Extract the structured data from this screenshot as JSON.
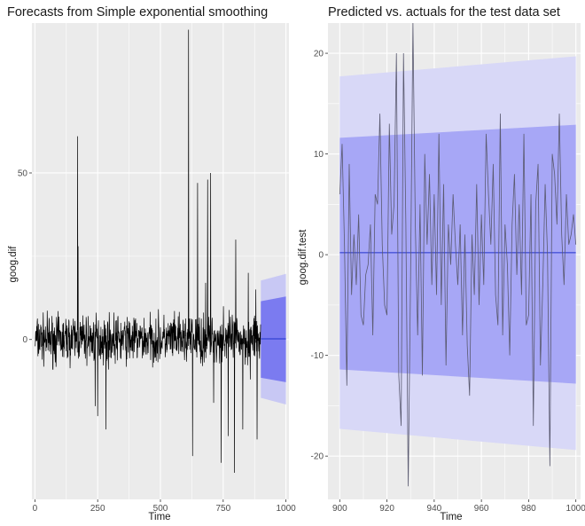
{
  "chart_data": [
    {
      "type": "line",
      "title": "Forecasts from Simple exponential smoothing",
      "xlabel": "Time",
      "ylabel": "goog.dif",
      "xlim": [
        -12,
        1012
      ],
      "ylim": [
        -48,
        95
      ],
      "xticks": [
        0,
        250,
        500,
        750,
        1000
      ],
      "yticks": [
        0,
        50
      ],
      "xtick_labels": [
        "0",
        "250",
        "500",
        "750",
        "1000"
      ],
      "ytick_labels": [
        "0",
        "50"
      ],
      "series": [
        {
          "x_start": 1,
          "x_end": 899,
          "seed": 7,
          "spikes": [
            [
              170,
              61
            ],
            [
              172,
              28
            ],
            [
              240,
              -20
            ],
            [
              250,
              -23
            ],
            [
              283,
              -27
            ],
            [
              612,
              93
            ],
            [
              628,
              -35
            ],
            [
              648,
              47
            ],
            [
              668,
              -8
            ],
            [
              680,
              17
            ],
            [
              688,
              48
            ],
            [
              700,
              50
            ],
            [
              712,
              -19
            ],
            [
              742,
              -37
            ],
            [
              751,
              10
            ],
            [
              770,
              -29
            ],
            [
              795,
              -40
            ],
            [
              800,
              30
            ],
            [
              828,
              -27
            ],
            [
              850,
              20
            ],
            [
              858,
              -12
            ],
            [
              880,
              15
            ],
            [
              885,
              -30
            ]
          ]
        }
      ],
      "forecast": {
        "x_start": 900,
        "x_end": 1000,
        "mean": 0.2,
        "pi80": [
          [
            900,
            -11.5,
            11.5
          ],
          [
            1000,
            -12.8,
            12.9
          ]
        ],
        "pi95": [
          [
            900,
            -17.5,
            17.7
          ],
          [
            1000,
            -19.5,
            19.7
          ]
        ]
      },
      "colors": {
        "panel": "#ebebeb",
        "grid": "#ffffff",
        "line": "#000000",
        "pi80": "#7b7bf0",
        "pi95": "#c8c8f4",
        "mean": "#2233cc"
      }
    },
    {
      "type": "line",
      "title": "Predicted vs. actuals for the test data set",
      "xlabel": "Time",
      "ylabel": "goog.dif.test",
      "xlim": [
        895,
        1002
      ],
      "ylim": [
        -24.3,
        23
      ],
      "xticks": [
        900,
        920,
        940,
        960,
        980,
        1000
      ],
      "yticks": [
        -20,
        -10,
        0,
        10,
        20
      ],
      "xtick_labels": [
        "900",
        "920",
        "940",
        "960",
        "980",
        "1000"
      ],
      "ytick_labels": [
        "-20",
        "-10",
        "0",
        "10",
        "20"
      ],
      "series": [
        {
          "x_start": 900,
          "x_end": 1000,
          "values": [
            6,
            11,
            1,
            -13,
            9,
            -4,
            2,
            -3,
            4,
            -6,
            -7,
            -2,
            -1,
            3,
            -8,
            6,
            5,
            14,
            1,
            -5,
            -6,
            13,
            2,
            5,
            20,
            -12,
            -17,
            20,
            3,
            -23,
            -2,
            23,
            3,
            -8,
            5,
            -12,
            10,
            1,
            8,
            -3,
            6,
            -4,
            12,
            -5,
            7,
            -11,
            3,
            -1,
            6,
            1,
            -3,
            3,
            -8,
            2,
            -9,
            -14,
            2,
            -4,
            7,
            -5,
            4,
            -3,
            12,
            6,
            1,
            9,
            -4,
            -7,
            14,
            -8,
            3,
            -1,
            -10,
            3,
            8,
            -2,
            5,
            -4,
            12,
            -7,
            -6,
            6,
            -17,
            5,
            9,
            -11,
            -3,
            7,
            0,
            -21,
            10,
            8,
            3,
            14,
            2,
            -3,
            6,
            1,
            2,
            4,
            1
          ]
        }
      ],
      "forecast": {
        "x_start": 900,
        "x_end": 1000,
        "mean": 0.2,
        "pi80": [
          [
            900,
            -11.4,
            11.6
          ],
          [
            1000,
            -12.8,
            12.9
          ]
        ],
        "pi95": [
          [
            900,
            -17.3,
            17.7
          ],
          [
            1000,
            -19.4,
            19.7
          ]
        ]
      },
      "colors": {
        "panel": "#ebebeb",
        "grid": "#ffffff",
        "line": "#5a5a70",
        "pi80": "#a7a7f6",
        "pi95": "#d8d8f7",
        "mean": "#2233cc"
      }
    }
  ]
}
